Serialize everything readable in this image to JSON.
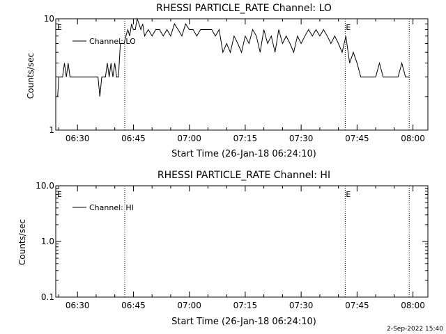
{
  "footer_timestamp": "2-Sep-2022 15:40",
  "chart_data": [
    {
      "type": "line",
      "title": "RHESSI PARTICLE_RATE Channel: LO",
      "xlabel": "Start Time (26-Jan-18 06:24:10)",
      "ylabel": "Counts/sec",
      "yscale": "log",
      "xlim": [
        "06:24:10",
        "08:04:00"
      ],
      "ylim": [
        1,
        10
      ],
      "x_ticks": [
        "06:30",
        "06:45",
        "07:00",
        "07:15",
        "07:30",
        "07:45",
        "08:00"
      ],
      "y_ticks": [
        {
          "value": 1,
          "label": "1"
        },
        {
          "value": 10,
          "label": "10"
        }
      ],
      "markers": [
        {
          "label": "E",
          "time": "06:24:10"
        },
        {
          "time": "06:42:40"
        },
        {
          "label": "E",
          "time": "07:41:50"
        },
        {
          "time": "07:59:00"
        }
      ],
      "series": [
        {
          "name": "Channel: LO",
          "x": [
            "06:24:40",
            "06:25:00",
            "06:25:30",
            "06:26:00",
            "06:26:30",
            "06:27:00",
            "06:27:30",
            "06:28:00",
            "06:28:30",
            "06:29:00",
            "06:29:30",
            "06:30:00",
            "06:30:30",
            "06:31:00",
            "06:31:30",
            "06:32:00",
            "06:32:30",
            "06:33:00",
            "06:33:30",
            "06:34:00",
            "06:34:30",
            "06:35:00",
            "06:35:30",
            "06:36:00",
            "06:36:30",
            "06:37:00",
            "06:37:30",
            "06:38:00",
            "06:38:30",
            "06:39:00",
            "06:39:30",
            "06:40:00",
            "06:40:30",
            "06:41:00",
            "06:41:30",
            "06:42:00",
            "06:42:30",
            "06:43:00",
            "06:43:30",
            "06:44:00",
            "06:44:30",
            "06:45:00",
            "06:45:30",
            "06:46:00",
            "06:46:30",
            "06:47:00",
            "06:47:30",
            "06:48:00",
            "06:49:00",
            "06:50:00",
            "06:51:00",
            "06:52:00",
            "06:53:00",
            "06:54:00",
            "06:55:00",
            "06:56:00",
            "06:57:00",
            "06:58:00",
            "06:59:00",
            "07:00:00",
            "07:01:00",
            "07:02:00",
            "07:03:00",
            "07:04:00",
            "07:05:00",
            "07:06:00",
            "07:07:00",
            "07:08:00",
            "07:09:00",
            "07:10:00",
            "07:11:00",
            "07:12:00",
            "07:13:00",
            "07:14:00",
            "07:15:00",
            "07:16:00",
            "07:17:00",
            "07:18:00",
            "07:19:00",
            "07:20:00",
            "07:21:00",
            "07:22:00",
            "07:23:00",
            "07:24:00",
            "07:25:00",
            "07:26:00",
            "07:27:00",
            "07:28:00",
            "07:29:00",
            "07:30:00",
            "07:31:00",
            "07:32:00",
            "07:33:00",
            "07:34:00",
            "07:35:00",
            "07:36:00",
            "07:37:00",
            "07:38:00",
            "07:39:00",
            "07:40:00",
            "07:41:00",
            "07:42:00",
            "07:43:00",
            "07:44:00",
            "07:45:00",
            "07:46:00",
            "07:47:00",
            "07:48:00",
            "07:49:00",
            "07:50:00",
            "07:51:00",
            "07:52:00",
            "07:53:00",
            "07:54:00",
            "07:55:00",
            "07:56:00",
            "07:57:00",
            "07:58:00",
            "07:59:00"
          ],
          "y": [
            2,
            3,
            3,
            3,
            4,
            3,
            4,
            3,
            3,
            3,
            3,
            3,
            3,
            3,
            3,
            3,
            3,
            3,
            3,
            3,
            3,
            3,
            3,
            2,
            3,
            3,
            3,
            4,
            3,
            4,
            3,
            4,
            3,
            3,
            6,
            6,
            6,
            7,
            8,
            7,
            9,
            8,
            8,
            10,
            9,
            8,
            9,
            7,
            8,
            7,
            8,
            8,
            7,
            8,
            7,
            9,
            8,
            7,
            9,
            8,
            8,
            7,
            8,
            8,
            8,
            8,
            7,
            8,
            5,
            6,
            5,
            7,
            6,
            5,
            7,
            6,
            8,
            7,
            5,
            8,
            6,
            7,
            5,
            8,
            6,
            7,
            6,
            5,
            7,
            6,
            7,
            8,
            7,
            8,
            7,
            8,
            7,
            6,
            7,
            6,
            5,
            7,
            4,
            5,
            4,
            3,
            3,
            3,
            3,
            3,
            4,
            3,
            3,
            3,
            3,
            3,
            4,
            3,
            3
          ],
          "color": "#000000"
        }
      ]
    },
    {
      "type": "line",
      "title": "RHESSI PARTICLE_RATE Channel: HI",
      "xlabel": "Start Time (26-Jan-18 06:24:10)",
      "ylabel": "Counts/sec",
      "yscale": "log",
      "xlim": [
        "06:24:10",
        "08:04:00"
      ],
      "ylim": [
        0.1,
        10
      ],
      "x_ticks": [
        "06:30",
        "06:45",
        "07:00",
        "07:15",
        "07:30",
        "07:45",
        "08:00"
      ],
      "y_ticks": [
        {
          "value": 0.1,
          "label": "0.1"
        },
        {
          "value": 1,
          "label": "1.0"
        },
        {
          "value": 10,
          "label": "10.0"
        }
      ],
      "markers": [
        {
          "label": "E",
          "time": "06:24:10"
        },
        {
          "time": "06:42:40"
        },
        {
          "label": "E",
          "time": "07:41:50"
        },
        {
          "time": "07:59:00"
        }
      ],
      "series": [
        {
          "name": "Channel: HI",
          "x": [],
          "y": [],
          "color": "#000000"
        }
      ]
    }
  ]
}
